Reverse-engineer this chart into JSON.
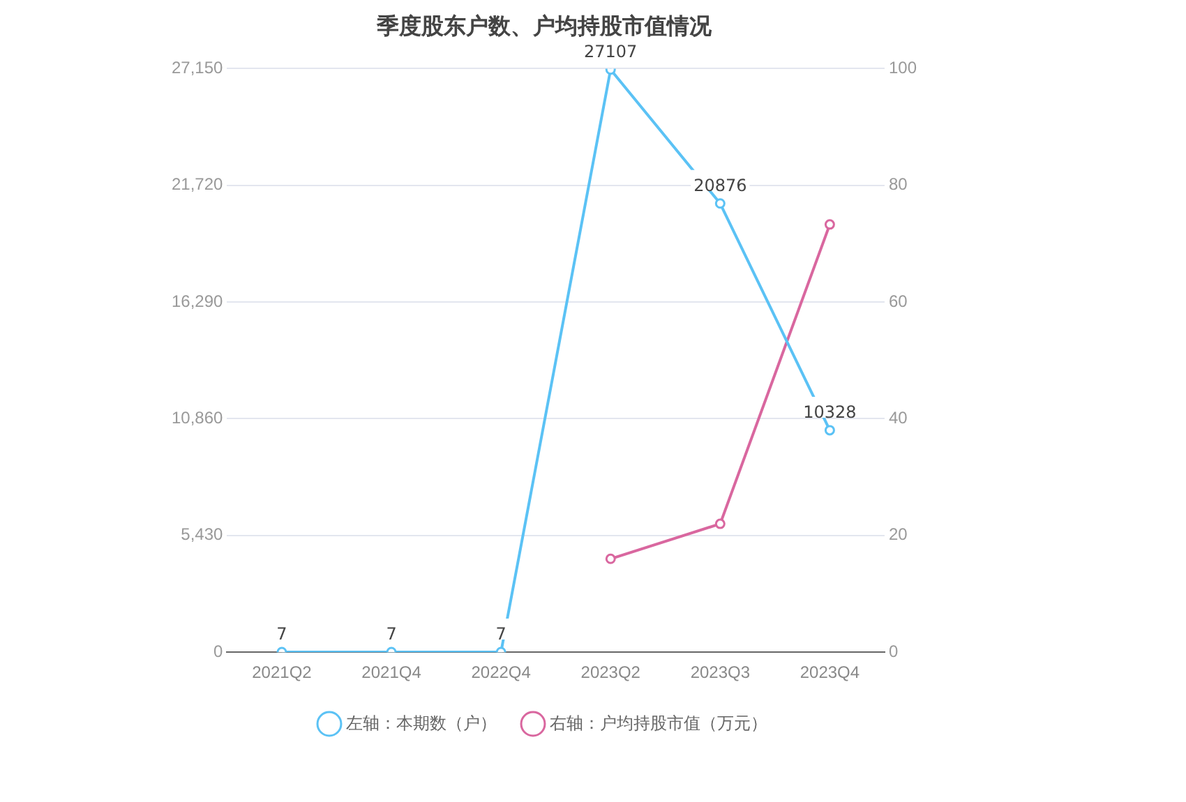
{
  "chart_data": {
    "type": "line",
    "title": "季度股东户数、户均持股市值情况",
    "categories": [
      "2021Q2",
      "2021Q4",
      "2022Q4",
      "2023Q2",
      "2023Q3",
      "2023Q4"
    ],
    "series": [
      {
        "name": "左轴：本期数（户）",
        "color": "#5bc2f5",
        "values": [
          7,
          7,
          7,
          27107,
          20876,
          10328
        ],
        "value_labels": [
          "7",
          "7",
          "7",
          "27107",
          "20876",
          "10328"
        ]
      },
      {
        "name": "右轴：户均持股市值（万元）",
        "color": "#d9679f",
        "axis": "y2",
        "values": [
          null,
          null,
          null,
          16,
          22,
          73.3
        ]
      }
    ],
    "ylim": [
      0,
      27150
    ],
    "yticks": [
      0,
      {
        "value": 5430,
        "label": "5,430"
      },
      {
        "value": 10860,
        "label": "10,860"
      },
      {
        "value": 16290,
        "label": "16,290"
      },
      {
        "value": 21720,
        "label": "21,720"
      },
      {
        "value": 27150,
        "label": "27,150"
      }
    ],
    "y2lim": [
      0,
      100
    ],
    "y2ticks": [
      0,
      20,
      40,
      60,
      80,
      100
    ],
    "grid": "y",
    "legend": "bottom",
    "marker": "circle",
    "line_style": "solid"
  }
}
